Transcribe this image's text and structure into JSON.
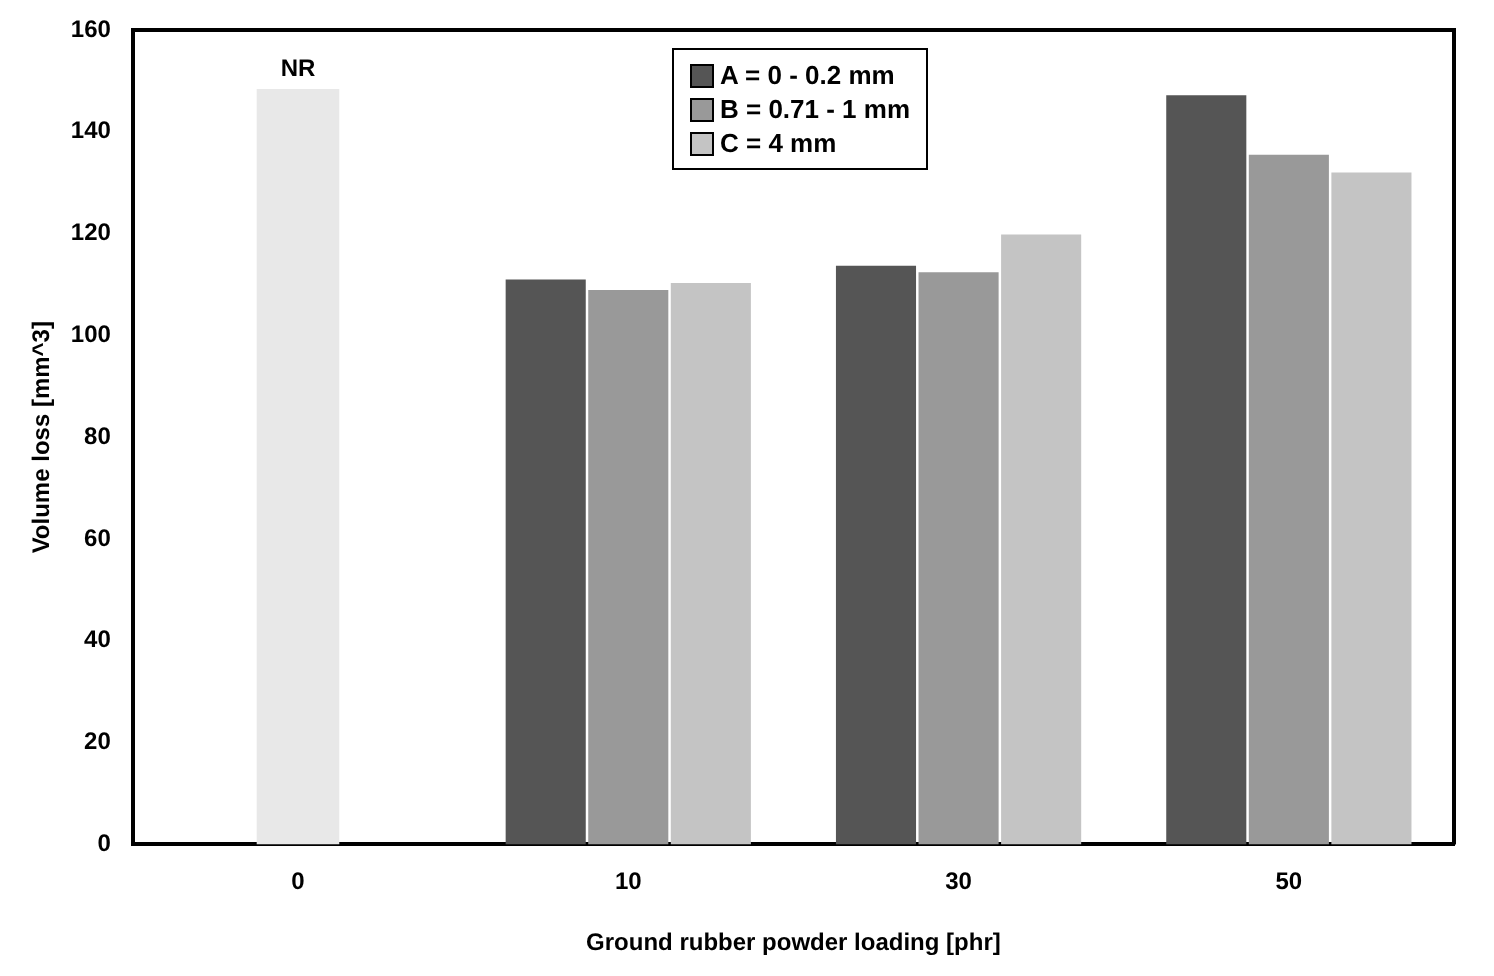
{
  "chart_data": {
    "type": "bar",
    "xlabel": "Ground rubber powder loading [phr]",
    "ylabel": "Volume loss [mm^3]",
    "categories": [
      "0",
      "10",
      "30",
      "50"
    ],
    "series": [
      {
        "name": "NR",
        "color": "#e8e8e8",
        "values": [
          148.4,
          null,
          null,
          null
        ]
      },
      {
        "name": "A = 0 - 0.2 mm",
        "color": "#555555",
        "values": [
          null,
          111,
          113.7,
          147.2
        ]
      },
      {
        "name": "B = 0.71 - 1 mm",
        "color": "#999999",
        "values": [
          null,
          108.9,
          112.4,
          135.5
        ]
      },
      {
        "name": "C = 4 mm",
        "color": "#c4c4c4",
        "values": [
          null,
          110.3,
          119.8,
          132
        ]
      }
    ],
    "ylim": [
      0,
      160
    ],
    "yticks": [
      0,
      20,
      40,
      60,
      80,
      100,
      120,
      140,
      160
    ],
    "grid": false,
    "legend": "top"
  }
}
